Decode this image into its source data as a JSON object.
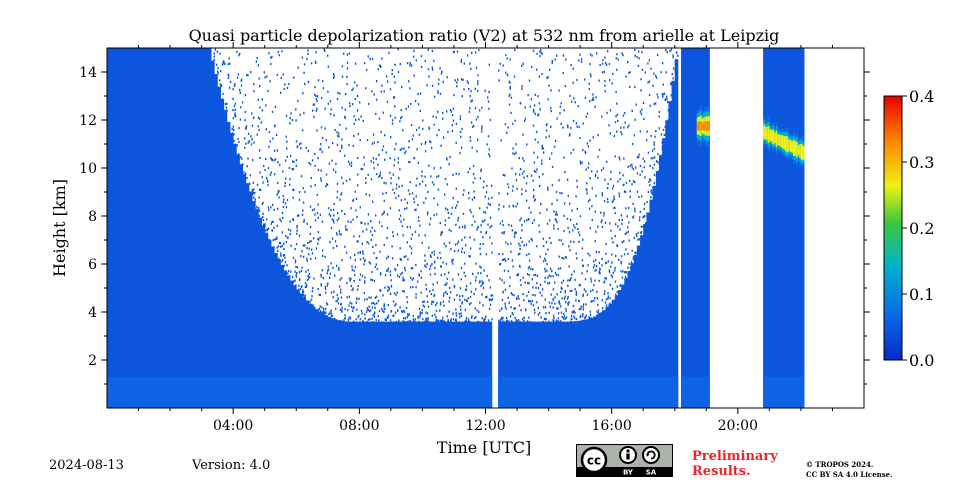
{
  "chart_data": {
    "type": "heatmap",
    "title": "Quasi particle depolarization ratio (V2) at 532 nm from arielle at Leipzig",
    "xlabel": "Time [UTC]",
    "ylabel": "Height [km]",
    "xlim": [
      0,
      24
    ],
    "ylim": [
      0,
      15
    ],
    "x_ticks": [
      {
        "value": 4,
        "label": "04:00"
      },
      {
        "value": 8,
        "label": "08:00"
      },
      {
        "value": 12,
        "label": "12:00"
      },
      {
        "value": 16,
        "label": "16:00"
      },
      {
        "value": 20,
        "label": "20:00"
      }
    ],
    "y_ticks": [
      {
        "value": 2,
        "label": "2"
      },
      {
        "value": 4,
        "label": "4"
      },
      {
        "value": 6,
        "label": "6"
      },
      {
        "value": 8,
        "label": "8"
      },
      {
        "value": 10,
        "label": "10"
      },
      {
        "value": 12,
        "label": "12"
      },
      {
        "value": 14,
        "label": "14"
      }
    ],
    "colorbar": {
      "min": 0.0,
      "max": 0.4,
      "ticks": [
        {
          "value": 0.0,
          "label": "0.0"
        },
        {
          "value": 0.1,
          "label": "0.1"
        },
        {
          "value": 0.2,
          "label": "0.2"
        },
        {
          "value": 0.3,
          "label": "0.3"
        },
        {
          "value": 0.4,
          "label": "0.4"
        }
      ],
      "colors": [
        "#0a28c8",
        "#0a6ee6",
        "#00b4c8",
        "#3cc83c",
        "#f0f014",
        "#ff8c00",
        "#e60000"
      ]
    },
    "data_gaps_hours": [
      [
        12.2,
        12.35
      ],
      [
        18.05,
        18.2
      ],
      [
        19.1,
        20.8
      ],
      [
        22.1,
        24
      ]
    ],
    "cloud_layers": [
      {
        "start": 18.7,
        "end": 19.1,
        "bottom": 10.9,
        "top": 12.6,
        "value": 0.35
      },
      {
        "start": 20.8,
        "end": 22.1,
        "bottom": 10.2,
        "top": 11.6,
        "value": 0.3
      }
    ]
  },
  "footer": {
    "date": "2024-08-13",
    "version": "Version: 4.0",
    "preliminary_line1": "Preliminary",
    "preliminary_line2": "Results.",
    "copyright_line1": "© TROPOS 2024.",
    "copyright_line2": "CC BY SA 4.0 License.",
    "cc_label": "cc",
    "by_label": "BY",
    "sa_label": "SA"
  }
}
